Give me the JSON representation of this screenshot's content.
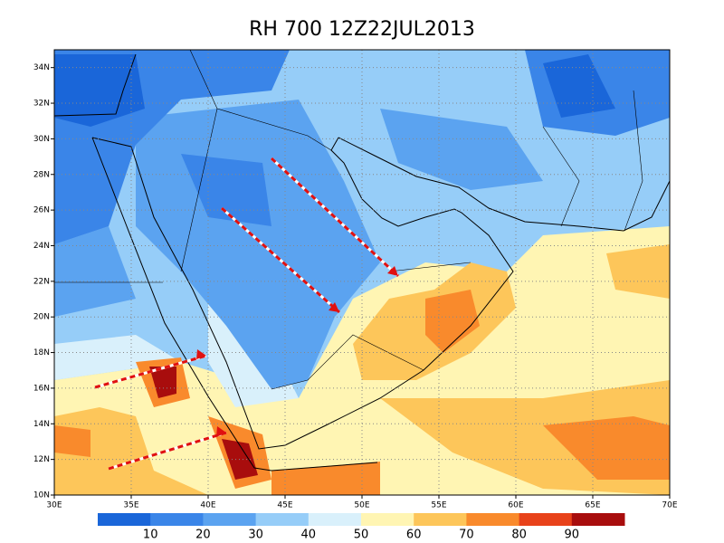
{
  "chart_data": {
    "type": "map",
    "title": "RH 700 12Z22JUL2013",
    "xlim": [
      30,
      70
    ],
    "ylim": [
      10,
      35
    ],
    "xticks": [
      {
        "value": 30,
        "label": "30E"
      },
      {
        "value": 35,
        "label": "35E"
      },
      {
        "value": 40,
        "label": "40E"
      },
      {
        "value": 45,
        "label": "45E"
      },
      {
        "value": 50,
        "label": "50E"
      },
      {
        "value": 55,
        "label": "55E"
      },
      {
        "value": 60,
        "label": "60E"
      },
      {
        "value": 65,
        "label": "65E"
      },
      {
        "value": 70,
        "label": "70E"
      }
    ],
    "yticks": [
      {
        "value": 10,
        "label": "10N"
      },
      {
        "value": 12,
        "label": "12N"
      },
      {
        "value": 14,
        "label": "14N"
      },
      {
        "value": 16,
        "label": "16N"
      },
      {
        "value": 18,
        "label": "18N"
      },
      {
        "value": 20,
        "label": "20N"
      },
      {
        "value": 22,
        "label": "22N"
      },
      {
        "value": 24,
        "label": "24N"
      },
      {
        "value": 26,
        "label": "26N"
      },
      {
        "value": 28,
        "label": "28N"
      },
      {
        "value": 30,
        "label": "30N"
      },
      {
        "value": 32,
        "label": "32N"
      },
      {
        "value": 34,
        "label": "34N"
      }
    ],
    "grid": true,
    "colorbar": {
      "levels": [
        10,
        20,
        30,
        40,
        50,
        60,
        70,
        80,
        90
      ],
      "colors": [
        "#1a66d9",
        "#3a85e8",
        "#5ba3f0",
        "#96cdf8",
        "#d9f0fb",
        "#fff5b3",
        "#fdc65a",
        "#f98a2c",
        "#e8421a",
        "#a80d0d"
      ]
    }
  }
}
